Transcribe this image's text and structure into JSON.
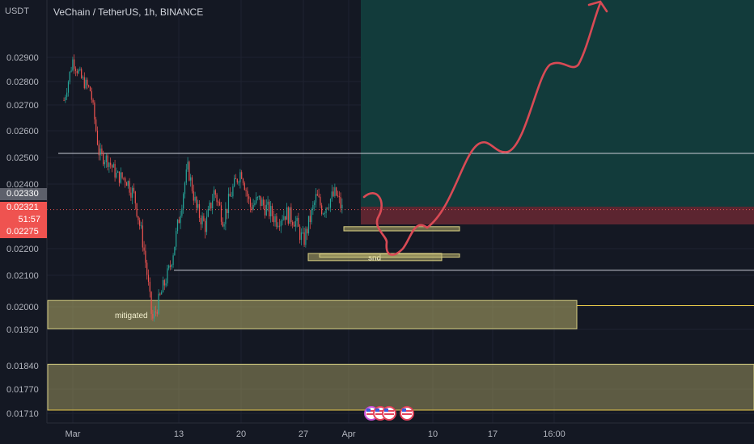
{
  "header": {
    "quote_currency": "USDT",
    "pair_title": "VeChain / TetherUS, 1h, BINANCE"
  },
  "price_tags": {
    "current_top": "0.02330",
    "last_price": "0.02321",
    "countdown": "51:57",
    "bottom_price": "0.02275"
  },
  "colors": {
    "background": "#141823",
    "bull": "#26a69a",
    "bear": "#ef5350",
    "zone": "#b5ad6a",
    "target": "#123b3b",
    "stop": "#5c2530",
    "arrow": "#d94a55"
  },
  "chart_data": {
    "type": "candlestick",
    "title": "VeChain / TetherUS, 1h, BINANCE",
    "ylim": [
      0.0169,
      0.0298
    ],
    "y_ticks": [
      "0.02900",
      "0.02800",
      "0.02700",
      "0.02600",
      "0.02500",
      "0.02400",
      "0.02200",
      "0.02100",
      "0.02000",
      "0.01920",
      "0.01840",
      "0.01770",
      "0.01710"
    ],
    "x_ticks": [
      "Mar",
      "13",
      "20",
      "27",
      "Apr",
      "10",
      "17",
      "16:00"
    ],
    "grid": true,
    "price_path": [
      [
        "2023-02-28",
        0.0272
      ],
      [
        "2023-03-01",
        0.0289
      ],
      [
        "2023-03-02",
        0.0281
      ],
      [
        "2023-03-03",
        0.0276
      ],
      [
        "2023-03-04",
        0.0251
      ],
      [
        "2023-03-05",
        0.0249
      ],
      [
        "2023-03-06",
        0.0243
      ],
      [
        "2023-03-07",
        0.0242
      ],
      [
        "2023-03-08",
        0.0236
      ],
      [
        "2023-03-09",
        0.0221
      ],
      [
        "2023-03-10",
        0.0195
      ],
      [
        "2023-03-11",
        0.0204
      ],
      [
        "2023-03-12",
        0.0213
      ],
      [
        "2023-03-13",
        0.0229
      ],
      [
        "2023-03-14",
        0.0246
      ],
      [
        "2023-03-15",
        0.0232
      ],
      [
        "2023-03-16",
        0.0227
      ],
      [
        "2023-03-17",
        0.0238
      ],
      [
        "2023-03-18",
        0.0229
      ],
      [
        "2023-03-19",
        0.0238
      ],
      [
        "2023-03-20",
        0.0245
      ],
      [
        "2023-03-21",
        0.0233
      ],
      [
        "2023-03-22",
        0.0235
      ],
      [
        "2023-03-23",
        0.0232
      ],
      [
        "2023-03-24",
        0.0229
      ],
      [
        "2023-03-25",
        0.0231
      ],
      [
        "2023-03-26",
        0.0229
      ],
      [
        "2023-03-27",
        0.0222
      ],
      [
        "2023-03-28",
        0.0229
      ],
      [
        "2023-03-29",
        0.0236
      ],
      [
        "2023-03-30",
        0.0232
      ],
      [
        "2023-03-31",
        0.0235
      ],
      [
        "2023-04-01",
        0.0237
      ],
      [
        "2023-04-02",
        0.02321
      ]
    ],
    "horizontal_lines": [
      0.02515,
      0.02119,
      0.02004,
      0.01718
    ],
    "zones": [
      {
        "label": "mitigated",
        "top": 0.0202,
        "bottom": 0.01922
      },
      {
        "label": "",
        "top": 0.01843,
        "bottom": 0.01718
      },
      {
        "label": "snd",
        "top": 0.02182,
        "bottom": 0.02155
      },
      {
        "label": "",
        "top": 0.02268,
        "bottom": 0.02255
      },
      {
        "label": "",
        "top": 0.0218,
        "bottom": 0.02172
      }
    ],
    "target_zone": {
      "top": 0.0298,
      "bottom": 0.0233
    },
    "stop_zone": {
      "top": 0.0233,
      "bottom": 0.02275
    },
    "last_price": 0.02321
  }
}
